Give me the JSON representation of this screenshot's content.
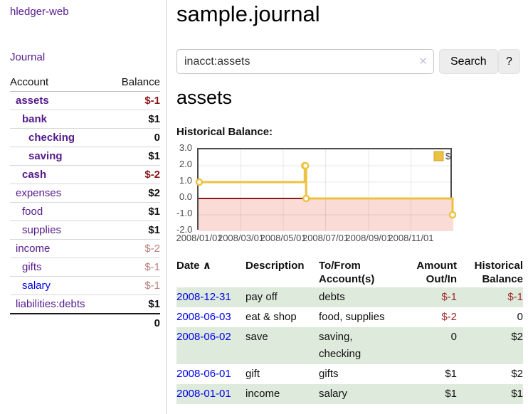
{
  "colors": {
    "link_purple": "#551a8b",
    "link_blue": "#0000ee",
    "negative": "#9e2b2b",
    "negative_strong": "#8b1616",
    "negative_muted": "#b97c7c",
    "row_green": "#deeadb",
    "chart_line": "#edc240",
    "chart_negative_region": "#fbdbd6",
    "chart_zero_line": "#8c1a1a"
  },
  "sidebar": {
    "brand": "hledger-web",
    "nav_journal": "Journal",
    "accounts_header": {
      "account": "Account",
      "balance": "Balance"
    },
    "accounts": [
      {
        "name": "assets",
        "balance": "$-1"
      },
      {
        "name": "bank",
        "balance": "$1"
      },
      {
        "name": "checking",
        "balance": "0"
      },
      {
        "name": "saving",
        "balance": "$1"
      },
      {
        "name": "cash",
        "balance": "$-2"
      },
      {
        "name": "expenses",
        "balance": "$2"
      },
      {
        "name": "food",
        "balance": "$1"
      },
      {
        "name": "supplies",
        "balance": "$1"
      },
      {
        "name": "income",
        "balance": "$-2"
      },
      {
        "name": "gifts",
        "balance": "$-1"
      },
      {
        "name": "salary",
        "balance": "$-1"
      },
      {
        "name": "liabilities:debts",
        "balance": "$1"
      }
    ],
    "total": "0"
  },
  "header": {
    "title": "sample.journal",
    "search": {
      "value": "inacct:assets",
      "clear_icon": "✕",
      "button": "Search",
      "help_button": "?"
    }
  },
  "account_page": {
    "title": "assets",
    "chart_label": "Historical Balance:"
  },
  "chart_data": {
    "type": "line",
    "line_style": "steps-after",
    "title": "Historical Balance",
    "series": [
      {
        "name": "$",
        "color": "#edc240",
        "points": [
          [
            "2008-01-01",
            1
          ],
          [
            "2008-06-01",
            2
          ],
          [
            "2008-06-02",
            2
          ],
          [
            "2008-06-03",
            0
          ],
          [
            "2008-12-31",
            -1
          ]
        ]
      }
    ],
    "x_range": [
      "2008-01-01",
      "2008-12-31"
    ],
    "x_ticks": [
      "2008/01/01",
      "2008/03/01",
      "2008/05/01",
      "2008/07/01",
      "2008/09/01",
      "2008/11/01"
    ],
    "y_ticks": [
      "3.0",
      "2.0",
      "1.0",
      "0.0",
      "-1.0",
      "-2.0"
    ],
    "ylim": [
      -2,
      3
    ],
    "grid": true,
    "legend_position": "top-right",
    "negative_region_color": "#fbdbd6",
    "zero_line_color": "#8c1a1a"
  },
  "register": {
    "headers": {
      "date": "Date",
      "sort_icon": "∧",
      "description": "Description",
      "accounts_line1": "To/From",
      "accounts_line2": "Account(s)",
      "amount_line1": "Amount",
      "amount_line2": "Out/In",
      "balance_line1": "Historical",
      "balance_line2": "Balance"
    },
    "rows": [
      {
        "date": "2008-12-31",
        "description": "pay off",
        "accounts": "debts",
        "amount": "$-1",
        "balance": "$-1"
      },
      {
        "date": "2008-06-03",
        "description": "eat & shop",
        "accounts": "food, supplies",
        "amount": "$-2",
        "balance": "0"
      },
      {
        "date": "2008-06-02",
        "description": "save",
        "accounts": "saving, checking",
        "amount": "0",
        "balance": "$2"
      },
      {
        "date": "2008-06-01",
        "description": "gift",
        "accounts": "gifts",
        "amount": "$1",
        "balance": "$2"
      },
      {
        "date": "2008-01-01",
        "description": "income",
        "accounts": "salary",
        "amount": "$1",
        "balance": "$1"
      }
    ]
  }
}
